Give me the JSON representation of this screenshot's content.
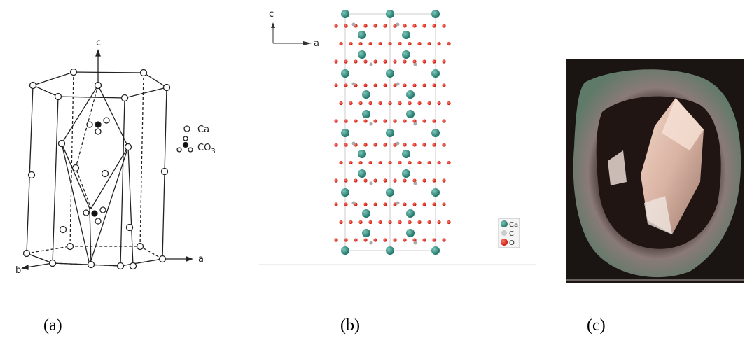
{
  "panels": [
    {
      "caption": "(a)",
      "axes": {
        "c": "c",
        "a": "a",
        "b": "b"
      },
      "legend": {
        "ca": "Ca",
        "co3": {
          "text": "CO",
          "subscript": "3"
        }
      }
    },
    {
      "caption": "(b)",
      "axes": {
        "c": "c",
        "a": "a"
      },
      "legend": {
        "ca": "Ca",
        "c": "C",
        "o": "O"
      }
    },
    {
      "caption": "(c)"
    }
  ]
}
